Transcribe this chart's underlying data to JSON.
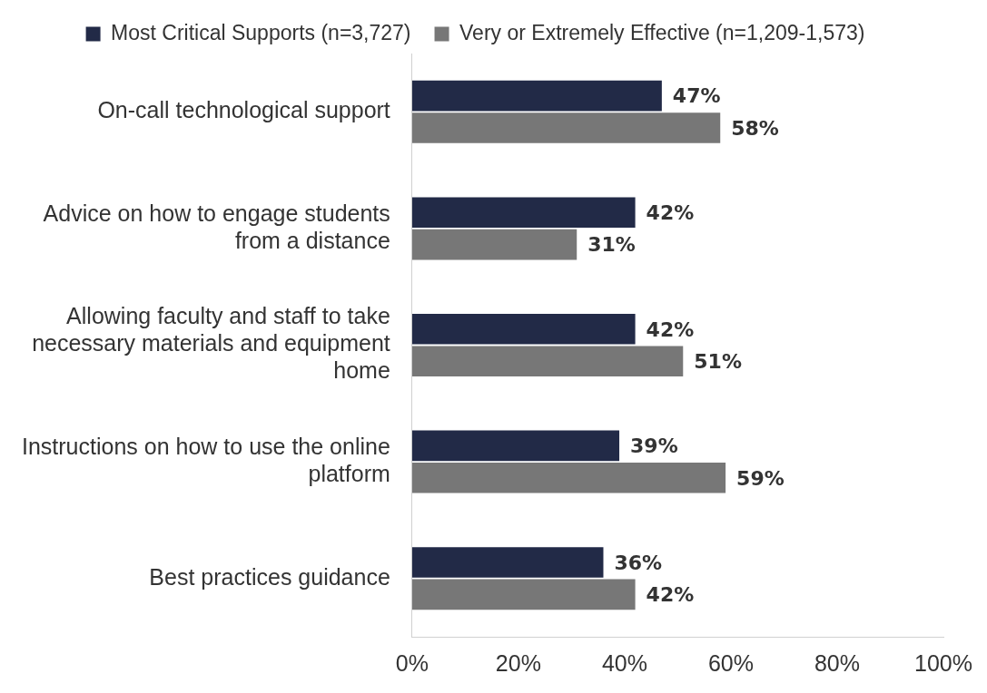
{
  "chart_data": {
    "type": "bar",
    "orientation": "horizontal",
    "categories": [
      "On-call technological support",
      "Advice on how to engage students from a distance",
      "Allowing faculty and staff to take necessary materials and equipment home",
      "Instructions on how to use the online platform",
      "Best practices guidance"
    ],
    "series": [
      {
        "name": "Most Critical Supports (n=3,727)",
        "color": "#222a47",
        "values": [
          47,
          42,
          42,
          39,
          36
        ]
      },
      {
        "name": "Very or Extremely Effective (n=1,209-1,573)",
        "color": "#777777",
        "values": [
          58,
          31,
          51,
          59,
          42
        ]
      }
    ],
    "xlim": [
      0,
      100
    ],
    "xticks": [
      {
        "value": 0,
        "label": "0%"
      },
      {
        "value": 20,
        "label": "20%"
      },
      {
        "value": 40,
        "label": "40%"
      },
      {
        "value": 60,
        "label": "60%"
      },
      {
        "value": 80,
        "label": "80%"
      },
      {
        "value": 100,
        "label": "100%"
      }
    ],
    "value_labels": [
      [
        "47%",
        "42%",
        "42%",
        "39%",
        "36%"
      ],
      [
        "58%",
        "31%",
        "51%",
        "59%",
        "42%"
      ]
    ],
    "grid": false,
    "legend": "top"
  }
}
